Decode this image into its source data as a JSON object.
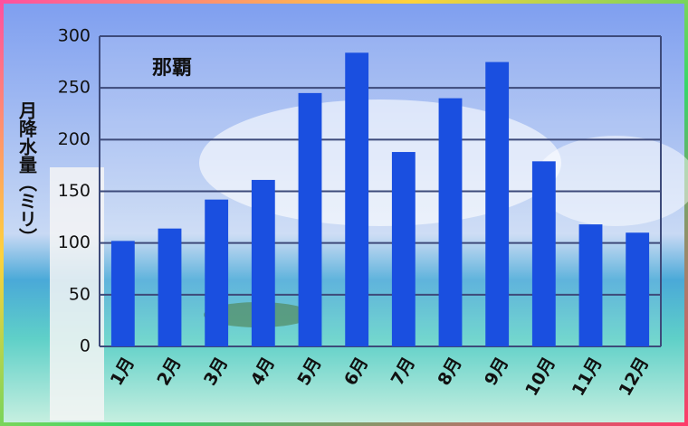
{
  "chart_data": {
    "type": "bar",
    "title": "那覇",
    "y_label": "月降水量（ミリ）",
    "categories": [
      "1月",
      "2月",
      "3月",
      "4月",
      "5月",
      "6月",
      "7月",
      "8月",
      "9月",
      "10月",
      "11月",
      "12月"
    ],
    "values": [
      102,
      114,
      142,
      161,
      245,
      284,
      188,
      240,
      275,
      179,
      118,
      110
    ],
    "color": "#1a4fe0",
    "ylim": [
      0,
      300
    ],
    "yticks": [
      0,
      50,
      100,
      150,
      200,
      250,
      300
    ],
    "grid": true
  }
}
